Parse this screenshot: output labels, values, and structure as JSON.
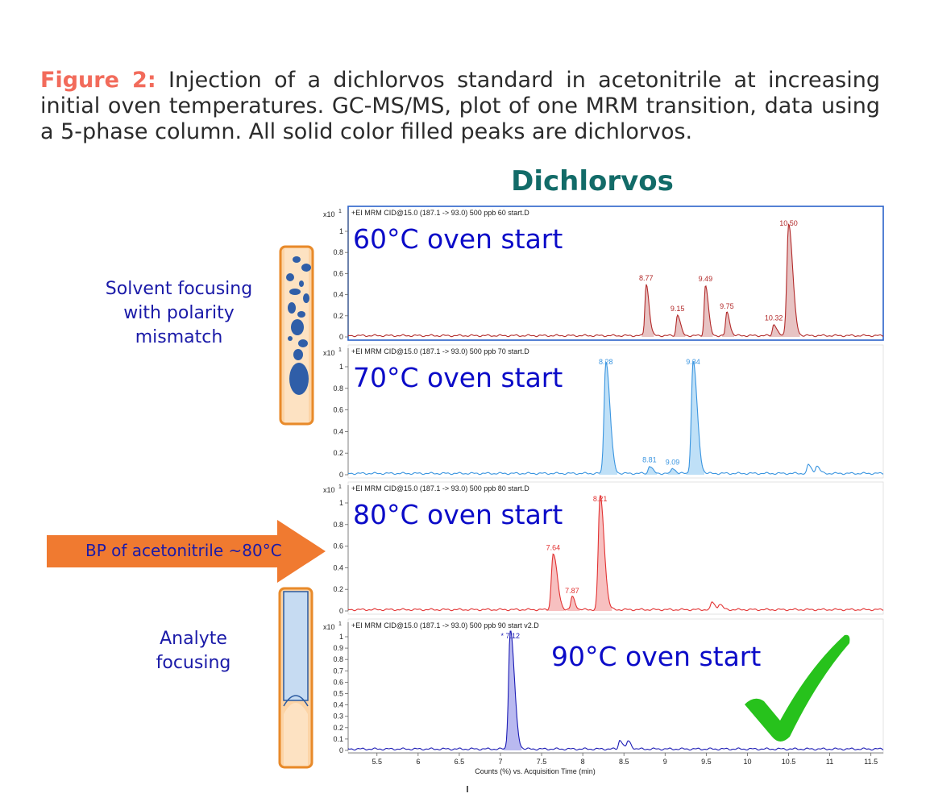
{
  "caption": {
    "figure_label": "Figure 2:",
    "text": "Injection of a dichlorvos standard in acetonitrile at increasing initial oven temperatures. GC-MS/MS, plot of one MRM transition, data using a 5-phase column. All solid color filled peaks are dichlorvos."
  },
  "left_labels": {
    "solvent_focusing": "Solvent focusing with polarity mismatch",
    "arrow": "BP of acetonitrile ~80°C",
    "analyte_focusing": "Analyte focusing"
  },
  "colors": {
    "title": "#126b68",
    "label_blue": "#1a1aa8",
    "arrow_orange": "#f07a30",
    "check_green": "#27c21c",
    "panel_60": "#b22a2a",
    "panel_70": "#3a95e0",
    "panel_80": "#e23232",
    "panel_90": "#1c1cb4"
  },
  "chart_data": {
    "type": "line",
    "title": "Dichlorvos",
    "xlabel": "Counts (%) vs. Acquisition Time (min)",
    "xlim": [
      5.15,
      11.65
    ],
    "x_ticks": [
      "5.5",
      "6",
      "6.5",
      "7",
      "7.5",
      "8",
      "8.5",
      "9",
      "9.5",
      "10",
      "10.5",
      "11",
      "11.5"
    ],
    "scale_label": "x10",
    "scale_exp": "1",
    "panels": [
      {
        "header": "+EI MRM CID@15.0 (187.1 -> 93.0) 500 ppb 60 start.D",
        "label": "60°C oven start",
        "ylim": [
          0,
          1.1
        ],
        "y_ticks": [
          "0",
          "0.2",
          "0.4",
          "0.6",
          "0.8",
          "1"
        ],
        "color": "#b22a2a",
        "fill": "#e7c3c3",
        "peaks": [
          {
            "rt": 8.77,
            "height": 0.49,
            "label": "8.77",
            "filled": true
          },
          {
            "rt": 9.15,
            "height": 0.2,
            "label": "9.15",
            "filled": true
          },
          {
            "rt": 9.49,
            "height": 0.48,
            "label": "9.49",
            "filled": true
          },
          {
            "rt": 9.75,
            "height": 0.22,
            "label": "9.75",
            "filled": true
          },
          {
            "rt": 10.32,
            "height": 0.11,
            "label": "10.32",
            "filled": true
          },
          {
            "rt": 10.5,
            "height": 1.06,
            "label": "10.50",
            "filled": true
          }
        ]
      },
      {
        "header": "+EI MRM CID@15.0 (187.1 -> 93.0) 500 ppb 70 start.D",
        "label": "70°C oven start",
        "ylim": [
          0,
          1.1
        ],
        "y_ticks": [
          "0",
          "0.2",
          "0.4",
          "0.6",
          "0.8",
          "1"
        ],
        "color": "#3a95e0",
        "fill": "#bfe0f7",
        "peaks": [
          {
            "rt": 8.28,
            "height": 1.04,
            "label": "8.28",
            "filled": true
          },
          {
            "rt": 8.81,
            "height": 0.07,
            "label": "8.81",
            "filled": true
          },
          {
            "rt": 9.09,
            "height": 0.05,
            "label": "9.09",
            "filled": true
          },
          {
            "rt": 9.34,
            "height": 1.04,
            "label": "9.34",
            "filled": true
          },
          {
            "rt": 10.74,
            "height": 0.08,
            "label": "",
            "filled": false
          },
          {
            "rt": 10.84,
            "height": 0.07,
            "label": "",
            "filled": false
          }
        ]
      },
      {
        "header": "+EI MRM CID@15.0 (187.1 -> 93.0) 500 ppb 80 start.D",
        "label": "80°C oven start",
        "ylim": [
          0,
          1.1
        ],
        "y_ticks": [
          "0",
          "0.2",
          "0.4",
          "0.6",
          "0.8",
          "1"
        ],
        "color": "#e23232",
        "fill": "#f7c0c0",
        "peaks": [
          {
            "rt": 7.64,
            "height": 0.52,
            "label": "7.64",
            "filled": true
          },
          {
            "rt": 7.87,
            "height": 0.12,
            "label": "7.87",
            "filled": true
          },
          {
            "rt": 8.21,
            "height": 1.06,
            "label": "8.21",
            "filled": true
          },
          {
            "rt": 9.57,
            "height": 0.07,
            "label": "",
            "filled": false
          },
          {
            "rt": 9.66,
            "height": 0.05,
            "label": "",
            "filled": false
          }
        ]
      },
      {
        "header": "+EI MRM CID@15.0 (187.1 -> 93.0) 500 ppb 90 start v2.D",
        "label": "90°C oven start",
        "ylim": [
          0,
          1.05
        ],
        "y_ticks": [
          "0",
          "0.1",
          "0.2",
          "0.3",
          "0.4",
          "0.5",
          "0.6",
          "0.7",
          "0.8",
          "0.9",
          "1"
        ],
        "color": "#1c1cb4",
        "fill": "#b9b9f0",
        "peaks": [
          {
            "rt": 7.12,
            "height": 1.05,
            "label": "* 7.12",
            "filled": true
          },
          {
            "rt": 8.45,
            "height": 0.08,
            "label": "",
            "filled": false
          },
          {
            "rt": 8.55,
            "height": 0.07,
            "label": "",
            "filled": false
          }
        ]
      }
    ]
  }
}
